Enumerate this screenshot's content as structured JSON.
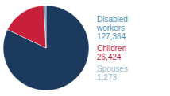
{
  "chart_data": {
    "type": "pie",
    "values": [
      127364,
      26424,
      1273
    ],
    "colors": [
      "#1b3a5e",
      "#c8203a",
      "#7a9ab5"
    ],
    "annotations": [
      {
        "text": "Disabled\nworkers\n127,364",
        "color": "#4a90b8"
      },
      {
        "text": "Children\n26,424",
        "color": "#c8203a"
      },
      {
        "text": "Spouses\n1,273",
        "color": "#9ab8cc"
      }
    ]
  }
}
